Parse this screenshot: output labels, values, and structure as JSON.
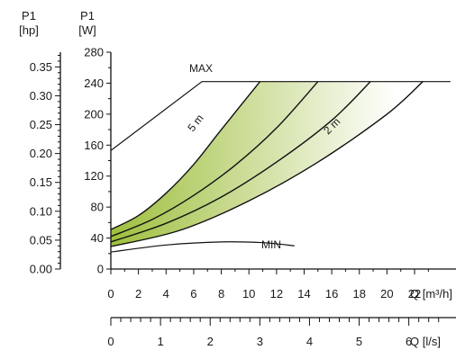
{
  "chart_data": {
    "type": "line",
    "axis_labels": {
      "hp_top": "P1",
      "hp_unit": "[hp]",
      "w_top": "P1",
      "w_unit": "[W]",
      "q_m3h": "Q [m³/h]",
      "q_ls": "Q [l/s]"
    },
    "axes": {
      "w": {
        "min": 0,
        "max": 280,
        "ticks": [
          0,
          40,
          80,
          120,
          160,
          200,
          240,
          280
        ]
      },
      "hp": {
        "min": 0,
        "max": 0.3755,
        "ticks": [
          0.0,
          0.05,
          0.1,
          0.15,
          0.2,
          0.25,
          0.3,
          0.35
        ],
        "tick_labels": [
          "0.00",
          "0.05",
          "0.10",
          "0.15",
          "0.20",
          "0.25",
          "0.30",
          "0.35"
        ]
      },
      "q_m3h": {
        "min": 0,
        "max": 25,
        "ticks": [
          0,
          2,
          4,
          6,
          8,
          10,
          12,
          14,
          16,
          18,
          20,
          22
        ]
      },
      "q_ls": {
        "min": 0,
        "max": 6.95,
        "ticks": [
          0,
          1,
          2,
          3,
          4,
          5,
          6
        ]
      }
    },
    "curve_labels": {
      "max": "MAX",
      "min": "MIN",
      "head_5m": "5 m",
      "head_2m": "2 m"
    },
    "series": [
      {
        "name": "MAX",
        "points": [
          [
            0,
            153
          ],
          [
            6.6,
            242
          ],
          [
            24.6,
            242
          ]
        ]
      },
      {
        "name": "5 m",
        "points": [
          [
            0,
            51
          ],
          [
            2,
            69
          ],
          [
            4,
            98
          ],
          [
            6,
            135
          ],
          [
            8,
            180
          ],
          [
            10.8,
            242
          ]
        ]
      },
      {
        "points": [
          [
            0,
            42
          ],
          [
            3,
            64
          ],
          [
            6,
            95
          ],
          [
            9,
            134
          ],
          [
            12,
            182
          ],
          [
            15,
            242
          ]
        ]
      },
      {
        "points": [
          [
            0,
            35
          ],
          [
            4,
            59
          ],
          [
            8,
            93
          ],
          [
            12,
            138
          ],
          [
            16,
            192
          ],
          [
            18.8,
            242
          ]
        ]
      },
      {
        "name": "2 m",
        "points": [
          [
            0,
            29
          ],
          [
            5,
            50
          ],
          [
            10,
            88
          ],
          [
            15,
            138
          ],
          [
            20,
            200
          ],
          [
            22.6,
            242
          ]
        ]
      },
      {
        "name": "MIN",
        "points": [
          [
            0,
            22
          ],
          [
            4,
            31
          ],
          [
            8,
            35
          ],
          [
            11,
            34
          ],
          [
            13.3,
            30
          ]
        ]
      }
    ],
    "colors": {
      "shade_left": "#9fbf3e",
      "shade_right": "#ffffff",
      "line": "#111111"
    }
  }
}
